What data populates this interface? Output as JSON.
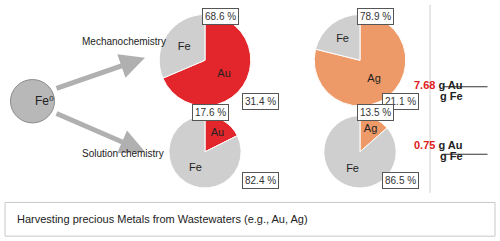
{
  "chart_data": [
    {
      "type": "pie",
      "categories": [
        "Au",
        "Fe"
      ],
      "values": [
        68.6,
        31.4
      ],
      "value_labels": [
        "68.6 %",
        "31.4 %"
      ],
      "colors": [
        "#e3262b",
        "#cfcfcf"
      ],
      "data_labels": true
    },
    {
      "type": "pie",
      "categories": [
        "Ag",
        "Fe"
      ],
      "values": [
        78.9,
        21.1
      ],
      "value_labels": [
        "78.9 %",
        "21.1 %"
      ],
      "colors": [
        "#ee9a68",
        "#cfcfcf"
      ],
      "data_labels": true
    },
    {
      "type": "pie",
      "categories": [
        "Au",
        "Fe"
      ],
      "values": [
        17.6,
        82.4
      ],
      "value_labels": [
        "17.6 %",
        "82.4 %"
      ],
      "colors": [
        "#e3262b",
        "#cfcfcf"
      ],
      "data_labels": true
    },
    {
      "type": "pie",
      "categories": [
        "Ag",
        "Fe"
      ],
      "values": [
        13.5,
        86.5
      ],
      "value_labels": [
        "13.5 %",
        "86.5 %"
      ],
      "colors": [
        "#ee9a68",
        "#cfcfcf"
      ],
      "data_labels": true
    }
  ],
  "source_label": "Fe⁰",
  "routes": [
    "Mechanochemistry",
    "Solution chemistry"
  ],
  "ratios": [
    {
      "value": 7.68,
      "numerator_unit": "g Au",
      "denominator": "g Fe",
      "color": "#e02020"
    },
    {
      "value": 0.75,
      "numerator_unit": "g Au",
      "denominator": "g Fe",
      "color": "#e02020"
    }
  ],
  "footer": "Harvesting precious Metals from Wastewaters (e.g., Au, Ag)"
}
